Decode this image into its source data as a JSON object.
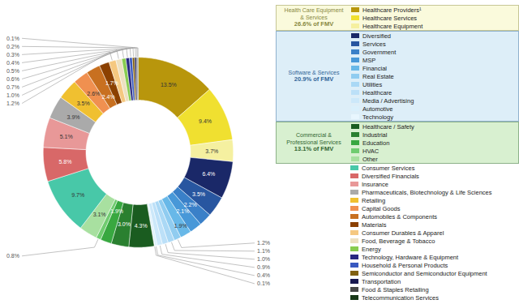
{
  "chart_data": {
    "type": "donut",
    "categories": [
      "Healthcare Providers¹",
      "Healthcare Services",
      "Healthcare Equipment",
      "Diversified",
      "Services",
      "Government",
      "MSP",
      "Financial",
      "Real Estate",
      "Utilities",
      "Healthcare",
      "Media / Advertising",
      "Automotive",
      "Technology",
      "Healthcare / Safety",
      "Industrial",
      "Education",
      "HVAC",
      "Other",
      "Consumer Services",
      "Diversified Financials",
      "Insurance",
      "Pharmaceuticals, Biotechnology & Life Sciences",
      "Retailing",
      "Capital Goods",
      "Automobiles & Components",
      "Materials",
      "Consumer Durables & Apparel",
      "Food, Beverage & Tobacco",
      "Energy",
      "Technology, Hardware & Equipment",
      "Household & Personal Products",
      "Semiconductor and Semiconductor Equipment",
      "Transportation",
      "Food & Staples Retailing",
      "Telecommunication Services"
    ],
    "values": [
      13.5,
      9.4,
      3.7,
      6.4,
      3.5,
      2.2,
      2.1,
      1.9,
      1.2,
      1.1,
      1.0,
      0.9,
      0.4,
      0.1,
      4.3,
      3.0,
      1.9,
      0.8,
      3.1,
      9.7,
      5.8,
      5.1,
      3.9,
      3.5,
      2.6,
      2.4,
      1.7,
      1.2,
      1.0,
      0.7,
      0.6,
      0.5,
      0.4,
      0.3,
      0.2,
      0.1
    ],
    "value_labels": [
      "13.5%",
      "9.4%",
      "3.7%",
      "6.4%",
      "3.5%",
      "2.2%",
      "2.1%",
      "1.9%",
      "1.2%",
      "1.1%",
      "1.0%",
      "0.9%",
      "0.4%",
      "0.1%",
      "4.3%",
      "3.0%",
      "1.9%",
      "0.8%",
      "3.1%",
      "9.7%",
      "5.8%",
      "5.1%",
      "3.9%",
      "3.5%",
      "2.6%",
      "2.4%",
      "1.7%",
      "1.2%",
      "1.0%",
      "0.7%",
      "0.6%",
      "0.5%",
      "0.4%",
      "0.3%",
      "0.2%",
      "0.1%"
    ],
    "colors": [
      "#b8960c",
      "#f0e030",
      "#f5f0a0",
      "#1a2868",
      "#2856a0",
      "#3a80c8",
      "#4898d8",
      "#68b8e8",
      "#90ccf0",
      "#aad8f5",
      "#bce0f8",
      "#cce8fa",
      "#daf0fc",
      "#e8f6fe",
      "#1a5c20",
      "#2a8030",
      "#38a840",
      "#70cc70",
      "#a8e0a0",
      "#48c8a8",
      "#d86868",
      "#e89898",
      "#aaaaaa",
      "#f0c030",
      "#f09050",
      "#c87020",
      "#8b4000",
      "#f5c880",
      "#ede0c0",
      "#88cc50",
      "#282880",
      "#3858c0",
      "#806010",
      "#181850",
      "#484848",
      "#183818"
    ],
    "data_labels": true,
    "legend": "right",
    "annotations": [
      {
        "text": [
          "Health Care Equipment",
          "& Services"
        ],
        "label": "26.6% of FMV",
        "color": "#888840",
        "fill": "#fafadc",
        "categories": [
          "Healthcare Providers¹",
          "Healthcare Services",
          "Healthcare Equipment"
        ]
      },
      {
        "text": [
          "Software & Services"
        ],
        "label": "20.9% of FMV",
        "color": "#336699",
        "fill": "#ddeef8",
        "categories": [
          "Diversified",
          "Services",
          "Government",
          "MSP",
          "Financial",
          "Real Estate",
          "Utilities",
          "Healthcare",
          "Media / Advertising",
          "Automotive",
          "Technology"
        ]
      },
      {
        "text": [
          "Commercial &",
          "Professional Services"
        ],
        "label": "13.1% of FMV",
        "color": "#336633",
        "fill": "#d8f0d0",
        "categories": [
          "Healthcare / Safety",
          "Industrial",
          "Education",
          "HVAC",
          "Other"
        ]
      }
    ]
  }
}
